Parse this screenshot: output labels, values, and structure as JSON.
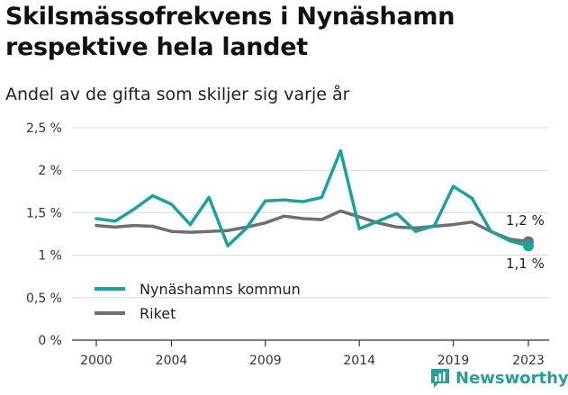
{
  "title": "Skilsmässofrekvens i Nynäshamn respektive hela landet",
  "subtitle": "Andel av de gifta som skiljer sig varje år",
  "brand": "Newsworthy",
  "colors": {
    "teal": "#19a39c",
    "gray": "#6e6e73",
    "grid": "#d9d9d9",
    "axis": "#333333",
    "brand": "#2a9d9a"
  },
  "chart_data": {
    "type": "line",
    "x": [
      2000,
      2001,
      2002,
      2003,
      2004,
      2005,
      2006,
      2007,
      2008,
      2009,
      2010,
      2011,
      2012,
      2013,
      2014,
      2015,
      2016,
      2017,
      2018,
      2019,
      2020,
      2021,
      2022,
      2023
    ],
    "series": [
      {
        "name": "Nynäshamns kommun",
        "color": "#19a39c",
        "values": [
          1.43,
          1.4,
          1.54,
          1.7,
          1.6,
          1.36,
          1.68,
          1.11,
          1.32,
          1.64,
          1.65,
          1.63,
          1.68,
          2.23,
          1.31,
          1.4,
          1.49,
          1.28,
          1.35,
          1.81,
          1.67,
          1.28,
          1.17,
          1.11
        ]
      },
      {
        "name": "Riket",
        "color": "#6e6e73",
        "values": [
          1.35,
          1.33,
          1.35,
          1.34,
          1.28,
          1.27,
          1.28,
          1.29,
          1.33,
          1.38,
          1.46,
          1.43,
          1.42,
          1.52,
          1.45,
          1.38,
          1.33,
          1.32,
          1.34,
          1.36,
          1.39,
          1.28,
          1.19,
          1.16
        ]
      }
    ],
    "y_ticks": [
      "0 %",
      "0,5 %",
      "1 %",
      "1,5 %",
      "2 %",
      "2,5 %"
    ],
    "x_ticks": [
      "2000",
      "2004",
      "2009",
      "2014",
      "2019",
      "2023"
    ],
    "ylim": [
      0,
      2.5
    ],
    "xlim": [
      2000,
      2023
    ],
    "end_labels": {
      "riket": "1,2 %",
      "nynashamn": "1,1 %"
    },
    "legend_position": "bottom-left",
    "grid": "horizontal"
  }
}
